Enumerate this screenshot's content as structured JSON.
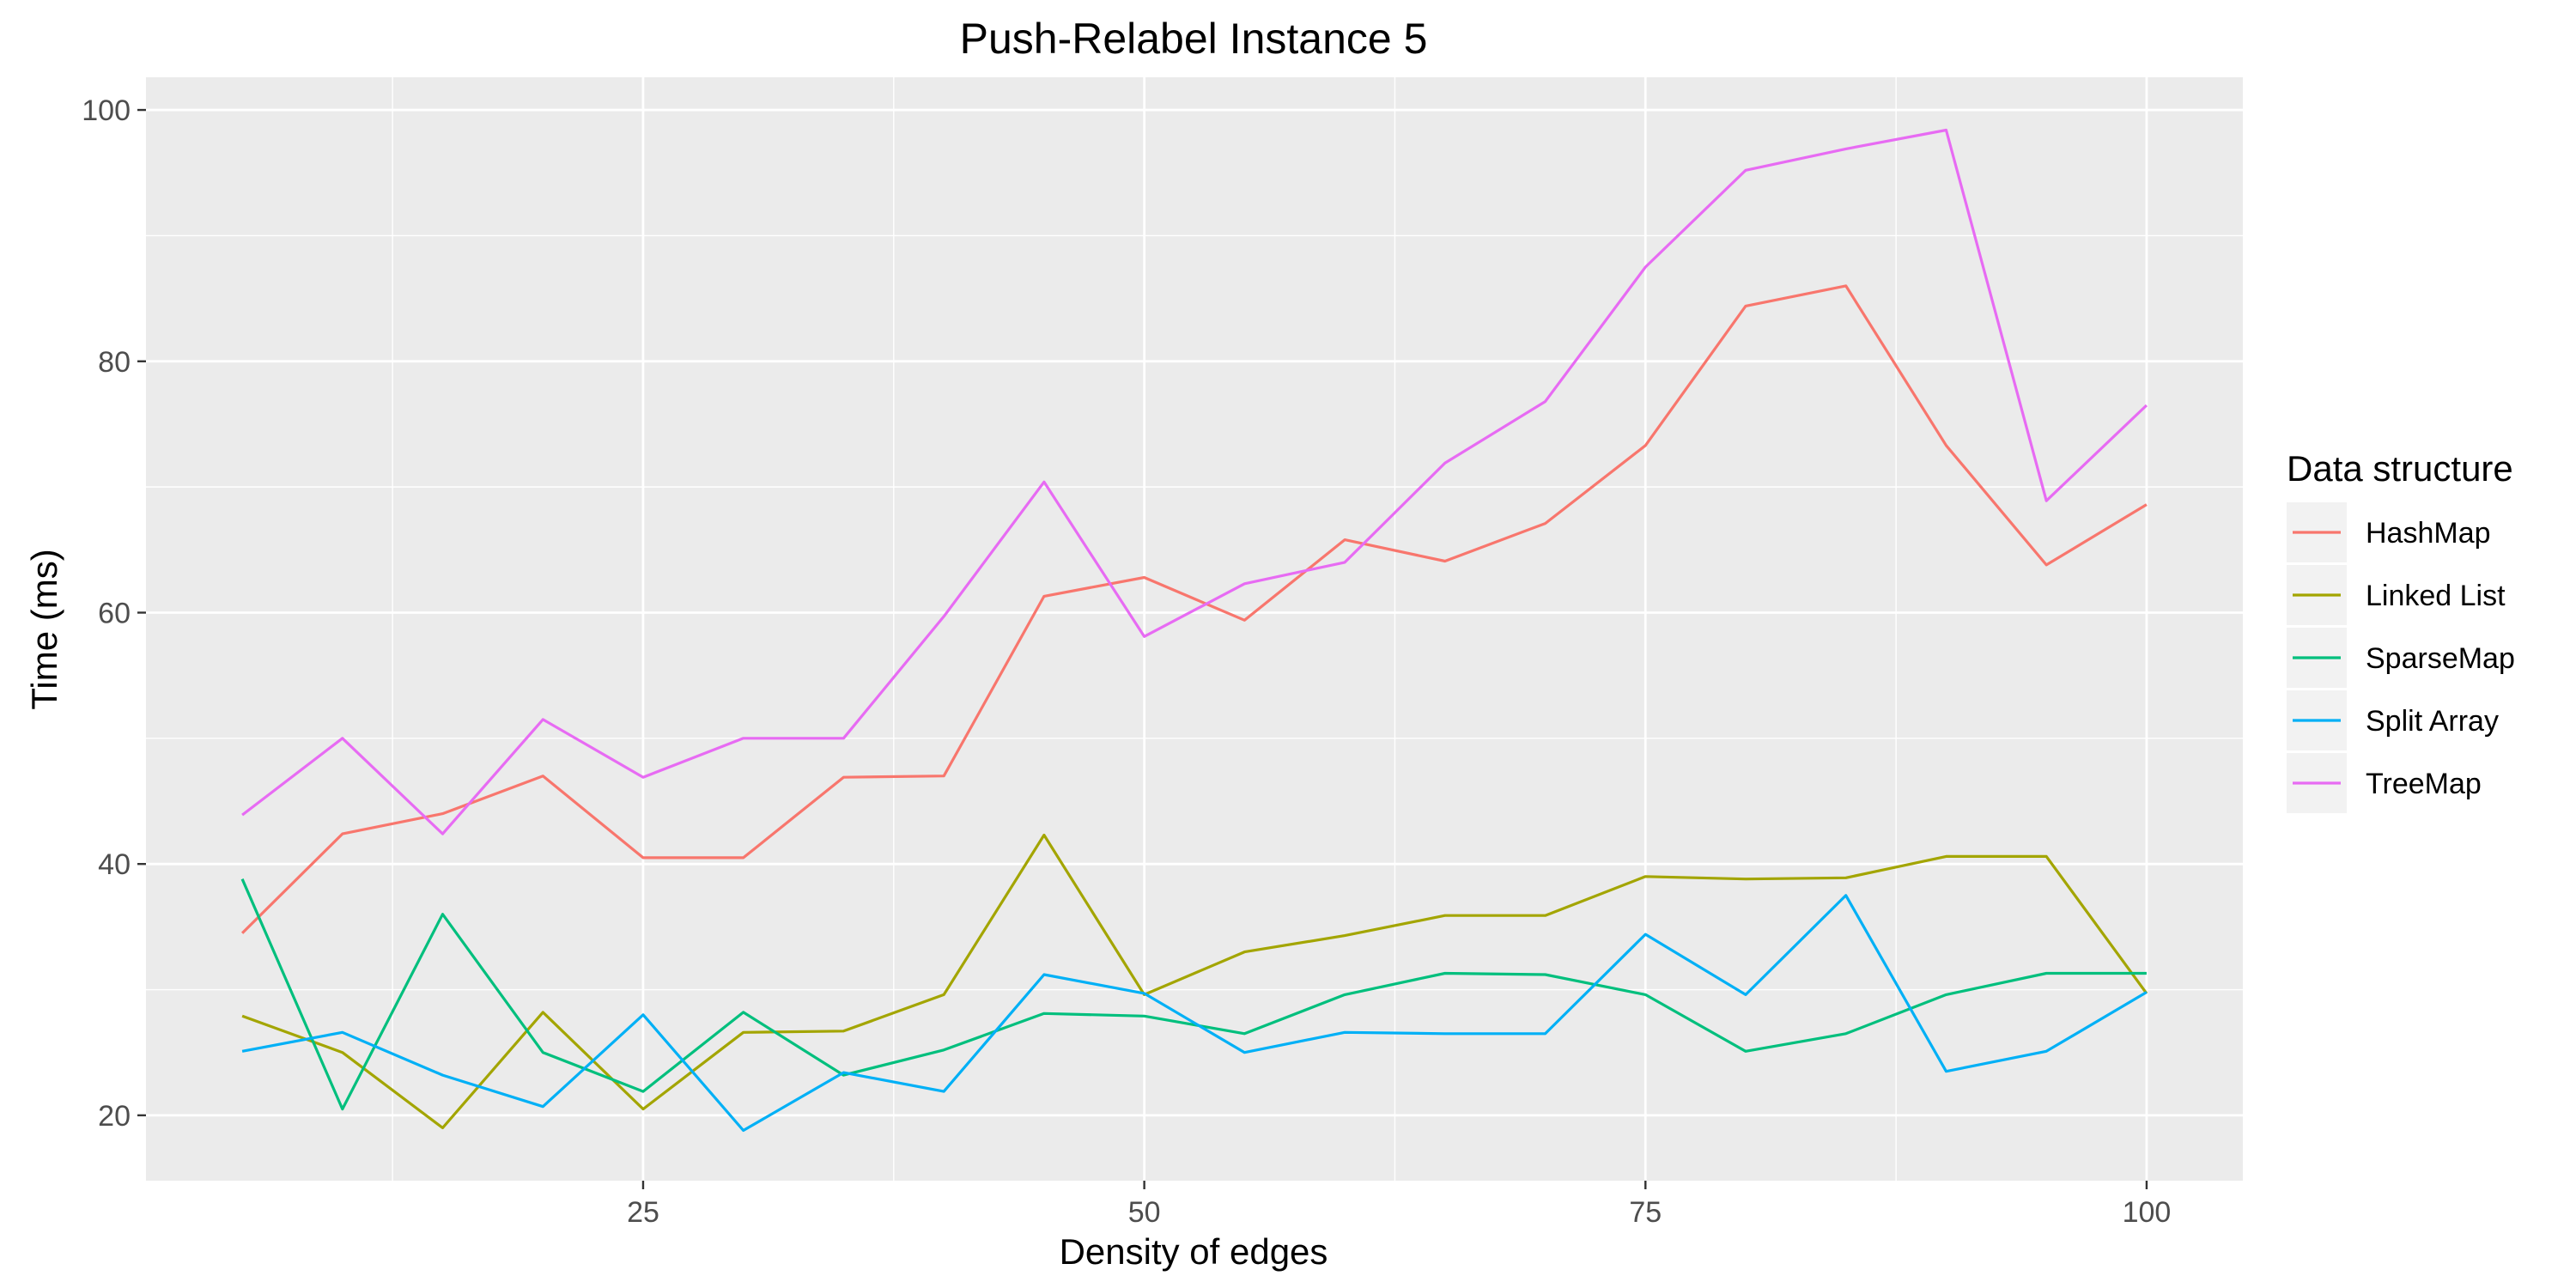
{
  "chart_data": {
    "type": "line",
    "title": "Push-Relabel Instance 5",
    "xlabel": "Density of edges",
    "ylabel": "Time (ms)",
    "xlim": [
      0.2,
      104.8
    ],
    "ylim": [
      14.8,
      102.6
    ],
    "x_ticks": [
      25,
      50,
      75,
      100
    ],
    "y_ticks": [
      20,
      40,
      60,
      80,
      100
    ],
    "grid": true,
    "legend": {
      "title": "Data structure",
      "position": "right"
    },
    "x": [
      5,
      10,
      15,
      20,
      25,
      30,
      35,
      40,
      45,
      50,
      55,
      60,
      65,
      70,
      75,
      80,
      85,
      90,
      95,
      100
    ],
    "series": [
      {
        "name": "HashMap",
        "color": "#F8766D",
        "values": [
          34.5,
          42.4,
          44.0,
          47.0,
          40.5,
          40.5,
          46.9,
          47.0,
          61.3,
          62.8,
          59.4,
          65.8,
          64.1,
          67.1,
          73.3,
          84.4,
          86.0,
          73.3,
          63.8,
          68.6
        ]
      },
      {
        "name": "Linked List",
        "color": "#A3A500",
        "values": [
          27.9,
          25.0,
          19.0,
          28.2,
          20.5,
          26.6,
          26.7,
          29.6,
          42.3,
          29.6,
          33.0,
          34.3,
          35.9,
          35.9,
          39.0,
          38.8,
          38.9,
          40.6,
          40.6,
          29.7
        ]
      },
      {
        "name": "SparseMap",
        "color": "#00BF7D",
        "values": [
          38.8,
          20.5,
          36.0,
          25.0,
          21.9,
          28.2,
          23.2,
          25.2,
          28.1,
          27.9,
          26.5,
          29.6,
          31.3,
          31.2,
          29.6,
          25.1,
          26.5,
          29.6,
          31.3,
          31.3
        ]
      },
      {
        "name": "Split Array",
        "color": "#00B0F6",
        "values": [
          25.1,
          26.6,
          23.2,
          20.7,
          28.0,
          18.8,
          23.4,
          21.9,
          31.2,
          29.7,
          25.0,
          26.6,
          26.5,
          26.5,
          34.4,
          29.6,
          37.5,
          23.5,
          25.1,
          29.8
        ]
      },
      {
        "name": "TreeMap",
        "color": "#E76BF3",
        "values": [
          43.9,
          50.0,
          42.4,
          51.5,
          46.9,
          50.0,
          50.0,
          59.7,
          70.4,
          58.1,
          62.3,
          64.0,
          71.9,
          76.8,
          87.5,
          95.2,
          96.9,
          98.4,
          68.9,
          76.5
        ]
      }
    ]
  }
}
